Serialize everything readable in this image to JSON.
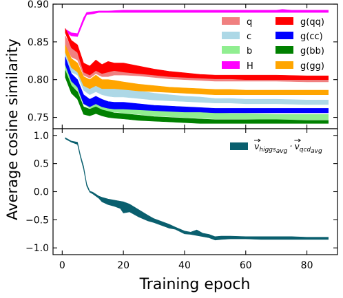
{
  "chart_data": [
    {
      "type": "area",
      "panel": "top",
      "xlim": [
        -3,
        90
      ],
      "ylim": [
        0.735,
        0.9
      ],
      "yticks": [
        0.75,
        0.8,
        0.85,
        0.9
      ],
      "ytick_labels": [
        "0.75",
        "0.80",
        "0.85",
        "0.90"
      ],
      "ylabel": "Average cosine similarity",
      "grid": false,
      "legend": {
        "placement": "top-right",
        "columns": 2
      },
      "series": [
        {
          "name": "q",
          "color": "#f08080",
          "x": [
            1,
            3,
            5,
            7,
            9,
            11,
            13,
            15,
            17,
            20,
            25,
            30,
            35,
            40,
            45,
            50,
            55,
            60,
            70,
            80,
            87
          ],
          "low": [
            0.846,
            0.83,
            0.826,
            0.806,
            0.802,
            0.808,
            0.804,
            0.804,
            0.806,
            0.806,
            0.805,
            0.803,
            0.801,
            0.8,
            0.799,
            0.798,
            0.798,
            0.798,
            0.798,
            0.797,
            0.797
          ],
          "high": [
            0.858,
            0.842,
            0.838,
            0.82,
            0.812,
            0.82,
            0.814,
            0.814,
            0.815,
            0.815,
            0.813,
            0.81,
            0.808,
            0.806,
            0.805,
            0.804,
            0.803,
            0.803,
            0.803,
            0.802,
            0.802
          ]
        },
        {
          "name": "c",
          "color": "#add8e6",
          "x": [
            1,
            3,
            5,
            7,
            9,
            11,
            13,
            15,
            17,
            20,
            25,
            30,
            35,
            40,
            45,
            50,
            55,
            60,
            70,
            80,
            87
          ],
          "low": [
            0.828,
            0.81,
            0.806,
            0.786,
            0.78,
            0.784,
            0.78,
            0.778,
            0.777,
            0.777,
            0.775,
            0.773,
            0.772,
            0.771,
            0.77,
            0.769,
            0.769,
            0.768,
            0.768,
            0.767,
            0.767
          ],
          "high": [
            0.838,
            0.822,
            0.818,
            0.798,
            0.792,
            0.796,
            0.791,
            0.789,
            0.788,
            0.787,
            0.785,
            0.782,
            0.78,
            0.778,
            0.777,
            0.775,
            0.775,
            0.774,
            0.774,
            0.773,
            0.773
          ]
        },
        {
          "name": "b",
          "color": "#90ee90",
          "x": [
            1,
            3,
            5,
            7,
            9,
            11,
            13,
            15,
            17,
            20,
            25,
            30,
            35,
            40,
            45,
            50,
            55,
            60,
            70,
            80,
            87
          ],
          "low": [
            0.812,
            0.792,
            0.786,
            0.768,
            0.762,
            0.764,
            0.76,
            0.758,
            0.757,
            0.756,
            0.754,
            0.752,
            0.751,
            0.75,
            0.749,
            0.748,
            0.748,
            0.748,
            0.747,
            0.747,
            0.747
          ],
          "high": [
            0.822,
            0.802,
            0.796,
            0.778,
            0.772,
            0.775,
            0.77,
            0.768,
            0.766,
            0.765,
            0.762,
            0.76,
            0.759,
            0.758,
            0.757,
            0.756,
            0.755,
            0.755,
            0.754,
            0.754,
            0.754
          ]
        },
        {
          "name": "H",
          "color": "#ff00ff",
          "x": [
            1,
            3,
            5,
            7,
            8,
            10,
            12,
            15,
            20,
            30,
            40,
            50,
            60,
            70,
            72,
            75,
            80,
            87
          ],
          "low": [
            0.863,
            0.858,
            0.857,
            0.877,
            0.886,
            0.887,
            0.889,
            0.889,
            0.889,
            0.889,
            0.889,
            0.889,
            0.889,
            0.889,
            0.889,
            0.889,
            0.889,
            0.889
          ],
          "high": [
            0.867,
            0.862,
            0.861,
            0.882,
            0.889,
            0.89,
            0.891,
            0.891,
            0.892,
            0.892,
            0.892,
            0.892,
            0.892,
            0.892,
            0.893,
            0.892,
            0.892,
            0.892
          ]
        },
        {
          "name": "g(qq)",
          "color": "#ff0000",
          "x": [
            1,
            3,
            5,
            7,
            9,
            11,
            13,
            15,
            17,
            20,
            25,
            30,
            35,
            40,
            45,
            50,
            55,
            60,
            70,
            80,
            87
          ],
          "low": [
            0.862,
            0.842,
            0.836,
            0.81,
            0.806,
            0.812,
            0.808,
            0.81,
            0.812,
            0.81,
            0.808,
            0.806,
            0.804,
            0.803,
            0.802,
            0.801,
            0.801,
            0.8,
            0.8,
            0.8,
            0.8
          ],
          "high": [
            0.868,
            0.852,
            0.846,
            0.822,
            0.818,
            0.826,
            0.82,
            0.824,
            0.822,
            0.822,
            0.818,
            0.814,
            0.811,
            0.809,
            0.807,
            0.806,
            0.806,
            0.806,
            0.806,
            0.805,
            0.805
          ]
        },
        {
          "name": "g(cc)",
          "color": "#0000ff",
          "x": [
            1,
            3,
            5,
            7,
            9,
            11,
            13,
            15,
            17,
            20,
            25,
            30,
            35,
            40,
            45,
            50,
            55,
            60,
            70,
            80,
            87
          ],
          "low": [
            0.82,
            0.798,
            0.79,
            0.768,
            0.764,
            0.768,
            0.764,
            0.762,
            0.761,
            0.761,
            0.76,
            0.759,
            0.758,
            0.757,
            0.757,
            0.756,
            0.756,
            0.756,
            0.756,
            0.756,
            0.756
          ],
          "high": [
            0.83,
            0.808,
            0.8,
            0.78,
            0.774,
            0.778,
            0.774,
            0.771,
            0.77,
            0.77,
            0.768,
            0.766,
            0.765,
            0.764,
            0.763,
            0.762,
            0.762,
            0.762,
            0.762,
            0.762,
            0.762
          ]
        },
        {
          "name": "g(bb)",
          "color": "#008000",
          "x": [
            1,
            3,
            5,
            7,
            9,
            11,
            13,
            15,
            17,
            20,
            25,
            30,
            35,
            40,
            45,
            50,
            55,
            60,
            70,
            80,
            87
          ],
          "low": [
            0.803,
            0.782,
            0.774,
            0.754,
            0.752,
            0.755,
            0.752,
            0.75,
            0.749,
            0.748,
            0.746,
            0.745,
            0.744,
            0.743,
            0.742,
            0.742,
            0.742,
            0.742,
            0.742,
            0.742,
            0.742
          ],
          "high": [
            0.812,
            0.792,
            0.784,
            0.764,
            0.761,
            0.764,
            0.76,
            0.758,
            0.756,
            0.755,
            0.753,
            0.751,
            0.75,
            0.749,
            0.748,
            0.747,
            0.747,
            0.747,
            0.747,
            0.746,
            0.746
          ]
        },
        {
          "name": "g(gg)",
          "color": "#ffa500",
          "x": [
            1,
            3,
            5,
            7,
            9,
            11,
            13,
            15,
            17,
            20,
            25,
            30,
            35,
            40,
            45,
            50,
            55,
            60,
            70,
            80,
            87
          ],
          "low": [
            0.836,
            0.816,
            0.81,
            0.792,
            0.788,
            0.792,
            0.788,
            0.788,
            0.788,
            0.787,
            0.785,
            0.784,
            0.783,
            0.782,
            0.781,
            0.78,
            0.78,
            0.78,
            0.78,
            0.78,
            0.78
          ],
          "high": [
            0.846,
            0.828,
            0.822,
            0.804,
            0.8,
            0.806,
            0.8,
            0.8,
            0.799,
            0.797,
            0.794,
            0.792,
            0.79,
            0.789,
            0.788,
            0.787,
            0.787,
            0.786,
            0.786,
            0.786,
            0.786
          ]
        }
      ]
    },
    {
      "type": "area",
      "panel": "bottom",
      "xlim": [
        -3,
        90
      ],
      "ylim": [
        -1.12,
        1.12
      ],
      "xticks": [
        0,
        20,
        40,
        60,
        80
      ],
      "xtick_labels": [
        "0",
        "20",
        "40",
        "60",
        "80"
      ],
      "yticks": [
        -1.0,
        -0.5,
        0.0,
        0.5,
        1.0
      ],
      "ytick_labels": [
        "−1.0",
        "−0.5",
        "0.0",
        "0.5",
        "1.0"
      ],
      "xlabel": "Training epoch",
      "grid": false,
      "legend": {
        "placement": "top-right"
      },
      "series": [
        {
          "name_parts": {
            "v1": "v",
            "sub1": "higgs",
            "subsub1": "avg",
            "dot": "·",
            "v2": "v",
            "sub2": "qcd",
            "subsub2": "avg"
          },
          "color": "#0a5f6e",
          "x": [
            1,
            3,
            5,
            6,
            7,
            8,
            9,
            10,
            12,
            13,
            15,
            17,
            19,
            20,
            22,
            25,
            28,
            30,
            35,
            37,
            40,
            42,
            44,
            46,
            48,
            50,
            52,
            55,
            60,
            65,
            70,
            75,
            80,
            87
          ],
          "low": [
            0.94,
            0.88,
            0.84,
            0.6,
            0.4,
            0.1,
            -0.01,
            -0.04,
            -0.12,
            -0.18,
            -0.23,
            -0.26,
            -0.3,
            -0.38,
            -0.36,
            -0.45,
            -0.52,
            -0.55,
            -0.65,
            -0.67,
            -0.75,
            -0.76,
            -0.78,
            -0.8,
            -0.82,
            -0.86,
            -0.85,
            -0.84,
            -0.84,
            -0.85,
            -0.85,
            -0.85,
            -0.85,
            -0.85
          ],
          "high": [
            0.96,
            0.9,
            0.88,
            0.64,
            0.45,
            0.14,
            0.01,
            -0.01,
            -0.08,
            -0.1,
            -0.13,
            -0.15,
            -0.17,
            -0.18,
            -0.22,
            -0.32,
            -0.42,
            -0.48,
            -0.58,
            -0.63,
            -0.7,
            -0.72,
            -0.68,
            -0.74,
            -0.76,
            -0.8,
            -0.79,
            -0.79,
            -0.8,
            -0.8,
            -0.8,
            -0.8,
            -0.81,
            -0.81
          ]
        }
      ]
    }
  ]
}
